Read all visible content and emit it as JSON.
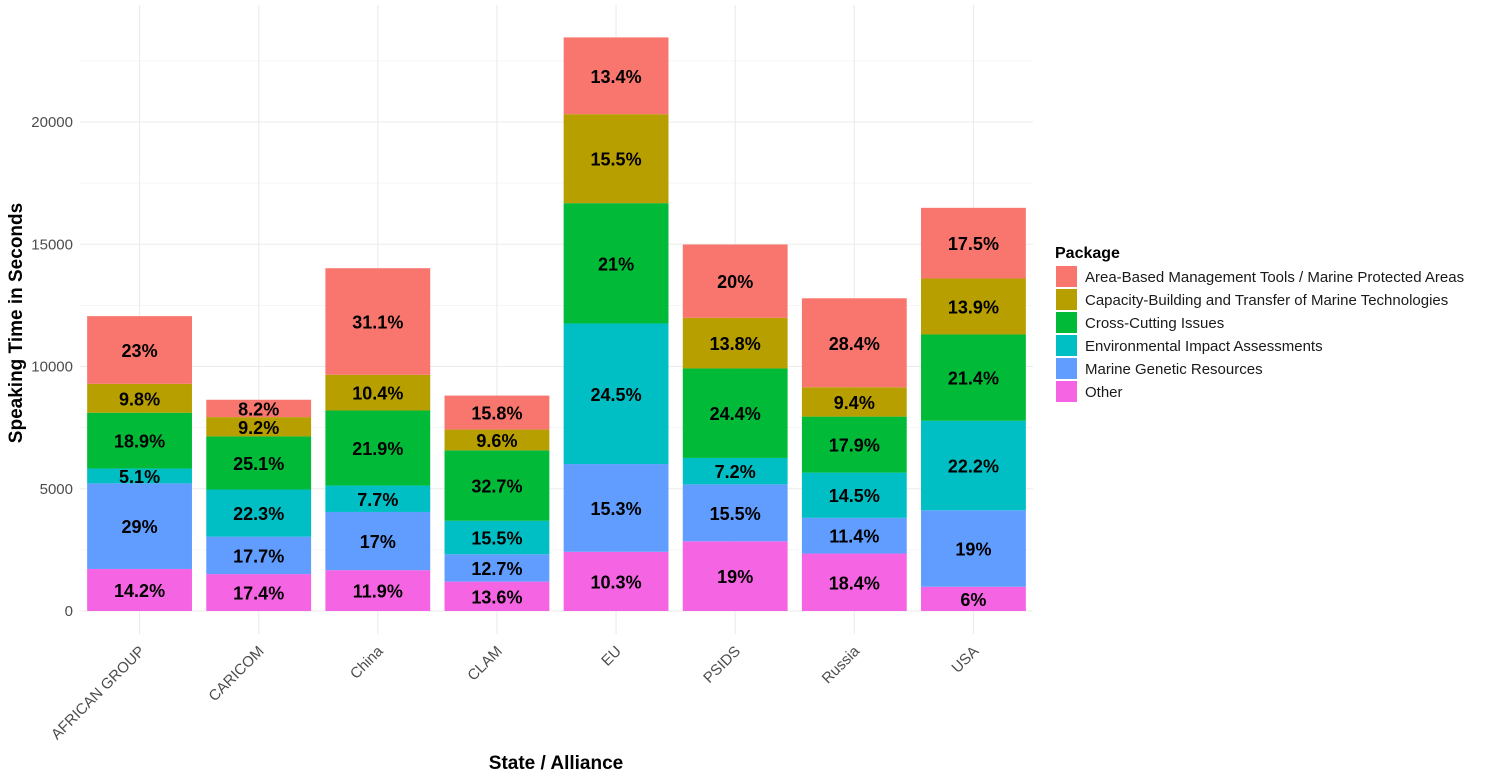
{
  "chart_data": {
    "type": "bar",
    "stacked": true,
    "title": "",
    "xlabel": "State / Alliance",
    "ylabel": "Speaking Time in Seconds",
    "ylim": [
      0,
      24500
    ],
    "yticks": [
      0,
      5000,
      10000,
      15000,
      20000
    ],
    "grid": true,
    "legend": {
      "title": "Package",
      "placement": "right"
    },
    "categories": [
      "AFRICAN GROUP",
      "CARICOM",
      "China",
      "CLAM",
      "EU",
      "PSIDS",
      "Russia",
      "USA"
    ],
    "series": [
      {
        "name": "Other",
        "color": "#F564E3",
        "values": [
          1720,
          1510,
          1670,
          1200,
          2420,
          2850,
          2350,
          990
        ],
        "labels": [
          "14.2%",
          "17.4%",
          "11.9%",
          "13.6%",
          "10.3%",
          "19%",
          "18.4%",
          "6%"
        ]
      },
      {
        "name": "Marine Genetic Resources",
        "color": "#619CFF",
        "values": [
          3500,
          1530,
          2380,
          1120,
          3590,
          2330,
          1460,
          3130
        ],
        "labels": [
          "29%",
          "17.7%",
          "17%",
          "12.7%",
          "15.3%",
          "15.5%",
          "11.4%",
          "19%"
        ]
      },
      {
        "name": "Environmental Impact Assessments",
        "color": "#00BFC4",
        "values": [
          610,
          1930,
          1080,
          1370,
          5750,
          1080,
          1850,
          3660
        ],
        "labels": [
          "5.1%",
          "22.3%",
          "7.7%",
          "15.5%",
          "24.5%",
          "7.2%",
          "14.5%",
          "22.2%"
        ]
      },
      {
        "name": "Cross-Cutting Issues",
        "color": "#00BA38",
        "values": [
          2280,
          2170,
          3070,
          2880,
          4920,
          3660,
          2290,
          3530
        ],
        "labels": [
          "18.9%",
          "25.1%",
          "21.9%",
          "32.7%",
          "21%",
          "24.4%",
          "17.9%",
          "21.4%"
        ]
      },
      {
        "name": "Capacity-Building and Transfer of Marine Technologies",
        "color": "#B79F00",
        "values": [
          1180,
          790,
          1460,
          850,
          3640,
          2070,
          1200,
          2290
        ],
        "labels": [
          "9.8%",
          "9.2%",
          "10.4%",
          "9.6%",
          "15.5%",
          "13.8%",
          "9.4%",
          "13.9%"
        ]
      },
      {
        "name": "Area-Based Management Tools / Marine Protected Areas",
        "color": "#F8766D",
        "values": [
          2770,
          710,
          4360,
          1390,
          3140,
          3000,
          3640,
          2890
        ],
        "labels": [
          "23%",
          "8.2%",
          "31.1%",
          "15.8%",
          "13.4%",
          "20%",
          "28.4%",
          "17.5%"
        ]
      }
    ],
    "legend_order": [
      "Area-Based Management Tools / Marine Protected Areas",
      "Capacity-Building and Transfer of Marine Technologies",
      "Cross-Cutting Issues",
      "Environmental Impact Assessments",
      "Marine Genetic Resources",
      "Other"
    ]
  }
}
